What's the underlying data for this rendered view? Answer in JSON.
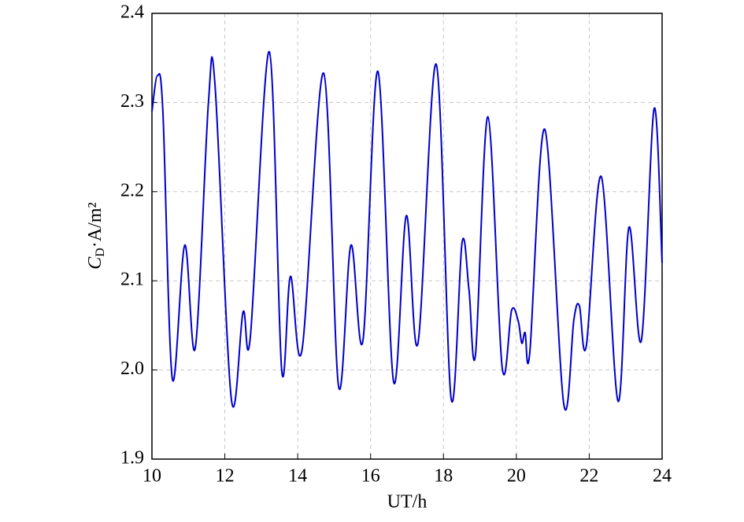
{
  "chart_data": {
    "type": "line",
    "xlabel": "UT/h",
    "ylabel": [
      "C",
      "D",
      "·A/m²"
    ],
    "xlim": [
      10,
      24
    ],
    "xticks": [
      10,
      12,
      14,
      16,
      18,
      20,
      22,
      24
    ],
    "ylim": [
      1.9,
      2.4
    ],
    "yticks": [
      {
        "value": 1.9,
        "label": "1.9"
      },
      {
        "value": 2.0,
        "label": "2.0"
      },
      2.1,
      2.2,
      2.3,
      2.4
    ],
    "grid": true,
    "series": [
      {
        "color": "#0000cc",
        "x": [
          10.0,
          10.15,
          10.3,
          10.56,
          10.9,
          11.19,
          11.55,
          11.73,
          12.18,
          12.5,
          12.7,
          13.22,
          13.56,
          13.8,
          14.12,
          14.71,
          15.12,
          15.46,
          15.79,
          16.2,
          16.63,
          16.98,
          17.3,
          17.8,
          18.21,
          18.51,
          18.7,
          18.88,
          19.22,
          19.61,
          19.87,
          20.05,
          20.15,
          20.24,
          20.37,
          20.78,
          21.3,
          21.58,
          21.73,
          21.92,
          22.33,
          22.79,
          23.09,
          23.43,
          23.78,
          24.0
        ],
        "values": [
          2.29,
          2.33,
          2.29,
          1.99,
          2.14,
          2.025,
          2.3,
          2.32,
          1.967,
          2.065,
          2.037,
          2.357,
          2.0,
          2.105,
          2.023,
          2.333,
          1.982,
          2.14,
          2.033,
          2.335,
          1.987,
          2.173,
          2.03,
          2.343,
          1.968,
          2.143,
          2.09,
          2.018,
          2.284,
          2.003,
          2.067,
          2.055,
          2.03,
          2.042,
          2.02,
          2.27,
          1.962,
          2.057,
          2.072,
          2.027,
          2.217,
          1.965,
          2.16,
          2.033,
          2.293,
          2.12
        ]
      }
    ]
  }
}
